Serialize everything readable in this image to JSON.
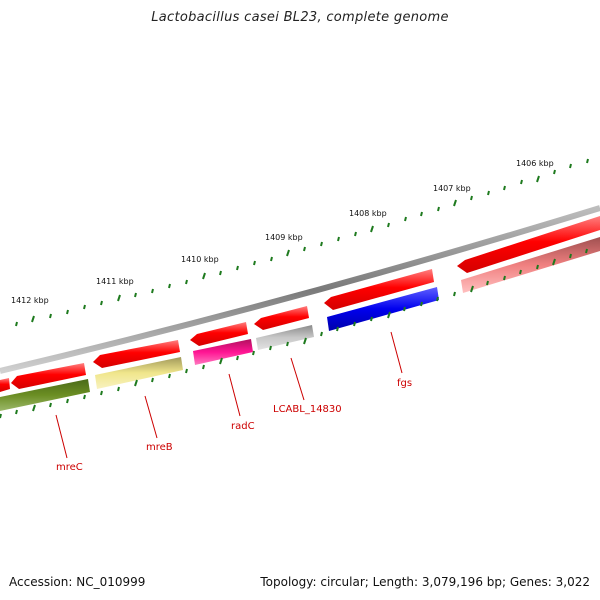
{
  "title": "Lactobacillus casei BL23, complete genome",
  "footer": {
    "accession": "Accession: NC_010999",
    "summary": "Topology: circular; Length: 3,079,196 bp; Genes: 3,022"
  },
  "scale_labels": [
    "1406 kbp",
    "1407 kbp",
    "1408 kbp",
    "1409 kbp",
    "1410 kbp",
    "1411 kbp",
    "1412 kbp"
  ],
  "gene_labels": [
    "fgs",
    "LCABL_14830",
    "radC",
    "mreB",
    "mreC"
  ],
  "colors": {
    "backbone": "#888888",
    "forward_cds": "#ff0000",
    "scale_ticks": "#1e7a1e",
    "label": "#cc0000",
    "fgs": "#0000ee",
    "LCABL_14830": "#b3b3b3",
    "radC": "#ff1493",
    "mreB": "#f0e68c",
    "mreC": "#6b8e23",
    "right_gene": "#f08080"
  }
}
